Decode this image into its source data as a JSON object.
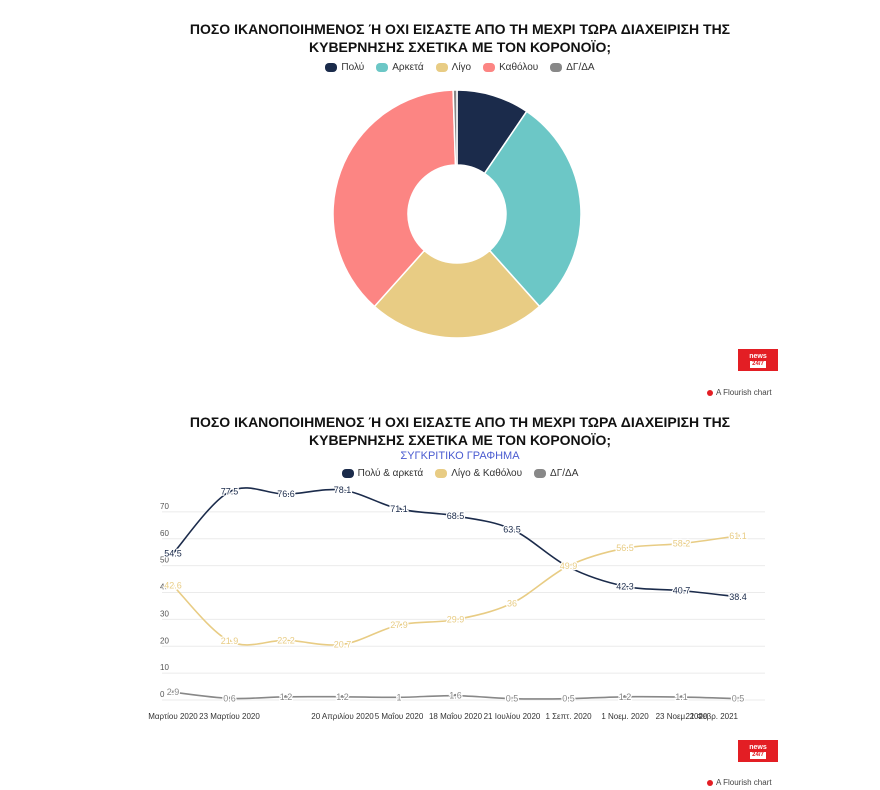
{
  "chart_data": [
    {
      "type": "pie",
      "title": "ΠΟΣΟ ΙΚΑΝΟΠΟΙΗΜΕΝΟΣ Ή ΟΧΙ ΕΙΣΑΣΤΕ ΑΠΟ ΤΗ ΜΕΧΡΙ ΤΩΡΑ ΔΙΑΧΕΙΡΙΣΗ ΤΗΣ ΚΥΒΕΡΝΗΣΗΣ ΣΧΕΤΙΚΑ ΜΕ ΤΟΝ ΚΟΡΟΝΟΪΟ;",
      "donut": true,
      "legend_position": "top-center",
      "slices": [
        {
          "label": "Πολύ",
          "value": 9.5,
          "color": "#1b2b4b"
        },
        {
          "label": "Αρκετά",
          "value": 28.9,
          "color": "#6cc7c6"
        },
        {
          "label": "Λίγο",
          "value": 23.2,
          "color": "#e8cc84"
        },
        {
          "label": "Καθόλου",
          "value": 37.9,
          "color": "#fc8583"
        },
        {
          "label": "ΔΓ/ΔΑ",
          "value": 0.5,
          "color": "#888888"
        }
      ]
    },
    {
      "type": "line",
      "title": "ΠΟΣΟ ΙΚΑΝΟΠΟΙΗΜΕΝΟΣ Ή ΟΧΙ ΕΙΣΑΣΤΕ ΑΠΟ ΤΗ ΜΕΧΡΙ ΤΩΡΑ ΔΙΑΧΕΙΡΙΣΗ ΤΗΣ ΚΥΒΕΡΝΗΣΗΣ ΣΧΕΤΙΚΑ ΜΕ ΤΟΝ ΚΟΡΟΝΟΪΟ;",
      "subtitle": "ΣΥΓΚΡΙΤΙΚΟ ΓΡΑΦΗΜΑ",
      "legend_position": "top-center",
      "ylim": [
        0,
        80
      ],
      "yticks": [
        0,
        10,
        20,
        30,
        40,
        50,
        60,
        70
      ],
      "categories": [
        "Μαρτίου 2020",
        "23 Μαρτίου 2020",
        "",
        "20 Απριλίου 2020",
        "5 Μαΐου 2020",
        "18 Μαΐου 2020",
        "21 Ιουλίου 2020",
        "1 Σεπτ. 2020",
        "1 Νοεμ. 2020",
        "23 Νοεμ. 2020",
        "21 Φεβρ. 2021"
      ],
      "series": [
        {
          "name": "Πολύ & αρκετά",
          "color": "#1b2b4b",
          "values": [
            54.5,
            77.5,
            76.6,
            78.1,
            71.1,
            68.5,
            63.5,
            49.5,
            42.3,
            40.7,
            38.4
          ],
          "labels": [
            "54.5",
            "77.5",
            "76.6",
            "78.1",
            "71.1",
            "68.5",
            "63.5",
            "",
            "42.3",
            "40.7",
            "38.4"
          ]
        },
        {
          "name": "Λίγο & Καθόλου",
          "color": "#e8cc84",
          "values": [
            42.6,
            21.9,
            22.2,
            20.7,
            27.9,
            29.9,
            36,
            49.9,
            56.5,
            58.2,
            61.1
          ],
          "labels": [
            "42.6",
            "21.9",
            "22.2",
            "20.7",
            "27.9",
            "29.9",
            "36",
            "49.9",
            "56.5",
            "58.2",
            "61.1"
          ]
        },
        {
          "name": "ΔΓ/ΔΑ",
          "color": "#888888",
          "values": [
            2.9,
            0.6,
            1.2,
            1.2,
            1,
            1.6,
            0.5,
            0.5,
            1.2,
            1.1,
            0.5
          ],
          "labels": [
            "2.9",
            "0.6",
            "1.2",
            "1.2",
            "1",
            "1.6",
            "0.5",
            "0.5",
            "1.2",
            "1.1",
            "0.5"
          ]
        }
      ]
    }
  ],
  "branding": {
    "logo_top": "news",
    "logo_bottom": "24/7",
    "credit": "A Flourish chart"
  }
}
